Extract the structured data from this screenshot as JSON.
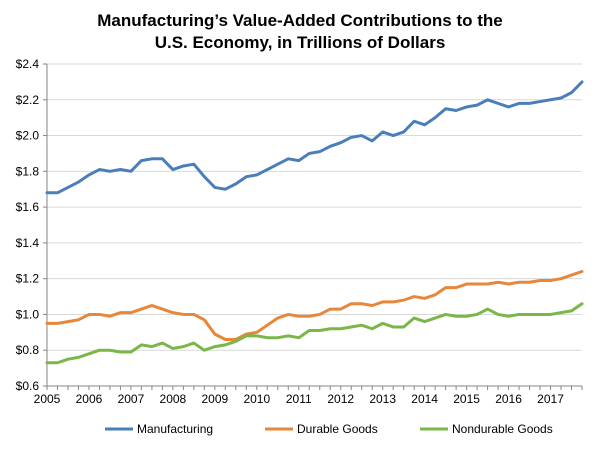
{
  "chart_data": {
    "type": "line",
    "title_lines": [
      "Manufacturing’s Value-Added Contributions to the",
      "U.S. Economy, in Trillions of Dollars"
    ],
    "xlabel": "",
    "ylabel": "",
    "xlim": [
      2005,
      2017.75
    ],
    "ylim": [
      0.6,
      2.4
    ],
    "yticks": [
      2.4,
      2.2,
      2.0,
      1.8,
      1.6,
      1.4,
      1.2,
      1.0,
      0.8,
      0.6
    ],
    "ytick_labels": [
      "$2.4",
      "$2.2",
      "$2.0",
      "$1.8",
      "$1.6",
      "$1.4",
      "$1.2",
      "$1.0",
      "$0.8",
      "$0.6"
    ],
    "xticks": [
      2005,
      2006,
      2007,
      2008,
      2009,
      2010,
      2011,
      2012,
      2013,
      2014,
      2015,
      2016,
      2017
    ],
    "xtick_labels": [
      "2005",
      "2006",
      "2007",
      "2008",
      "2009",
      "2010",
      "2011",
      "2012",
      "2013",
      "2014",
      "2015",
      "2016",
      "2017"
    ],
    "grid": "horizontal",
    "legend_position": "bottom",
    "x": [
      2005.0,
      2005.25,
      2005.5,
      2005.75,
      2006.0,
      2006.25,
      2006.5,
      2006.75,
      2007.0,
      2007.25,
      2007.5,
      2007.75,
      2008.0,
      2008.25,
      2008.5,
      2008.75,
      2009.0,
      2009.25,
      2009.5,
      2009.75,
      2010.0,
      2010.25,
      2010.5,
      2010.75,
      2011.0,
      2011.25,
      2011.5,
      2011.75,
      2012.0,
      2012.25,
      2012.5,
      2012.75,
      2013.0,
      2013.25,
      2013.5,
      2013.75,
      2014.0,
      2014.25,
      2014.5,
      2014.75,
      2015.0,
      2015.25,
      2015.5,
      2015.75,
      2016.0,
      2016.25,
      2016.5,
      2016.75,
      2017.0,
      2017.25,
      2017.5,
      2017.75
    ],
    "series": [
      {
        "name": "Manufacturing",
        "color": "#4a7ebb",
        "values": [
          1.68,
          1.68,
          1.71,
          1.74,
          1.78,
          1.81,
          1.8,
          1.81,
          1.8,
          1.86,
          1.87,
          1.87,
          1.81,
          1.83,
          1.84,
          1.77,
          1.71,
          1.7,
          1.73,
          1.77,
          1.78,
          1.81,
          1.84,
          1.87,
          1.86,
          1.9,
          1.91,
          1.94,
          1.96,
          1.99,
          2.0,
          1.97,
          2.02,
          2.0,
          2.02,
          2.08,
          2.06,
          2.1,
          2.15,
          2.14,
          2.16,
          2.17,
          2.2,
          2.18,
          2.16,
          2.18,
          2.18,
          2.19,
          2.2,
          2.21,
          2.24,
          2.3
        ]
      },
      {
        "name": "Durable Goods",
        "color": "#e8873a",
        "values": [
          0.95,
          0.95,
          0.96,
          0.97,
          1.0,
          1.0,
          0.99,
          1.01,
          1.01,
          1.03,
          1.05,
          1.03,
          1.01,
          1.0,
          1.0,
          0.97,
          0.89,
          0.86,
          0.86,
          0.89,
          0.9,
          0.94,
          0.98,
          1.0,
          0.99,
          0.99,
          1.0,
          1.03,
          1.03,
          1.06,
          1.06,
          1.05,
          1.07,
          1.07,
          1.08,
          1.1,
          1.09,
          1.11,
          1.15,
          1.15,
          1.17,
          1.17,
          1.17,
          1.18,
          1.17,
          1.18,
          1.18,
          1.19,
          1.19,
          1.2,
          1.22,
          1.24
        ]
      },
      {
        "name": "Nondurable Goods",
        "color": "#7ab648",
        "values": [
          0.73,
          0.73,
          0.75,
          0.76,
          0.78,
          0.8,
          0.8,
          0.79,
          0.79,
          0.83,
          0.82,
          0.84,
          0.81,
          0.82,
          0.84,
          0.8,
          0.82,
          0.83,
          0.85,
          0.88,
          0.88,
          0.87,
          0.87,
          0.88,
          0.87,
          0.91,
          0.91,
          0.92,
          0.92,
          0.93,
          0.94,
          0.92,
          0.95,
          0.93,
          0.93,
          0.98,
          0.96,
          0.98,
          1.0,
          0.99,
          0.99,
          1.0,
          1.03,
          1.0,
          0.99,
          1.0,
          1.0,
          1.0,
          1.0,
          1.01,
          1.02,
          1.06
        ]
      }
    ]
  }
}
